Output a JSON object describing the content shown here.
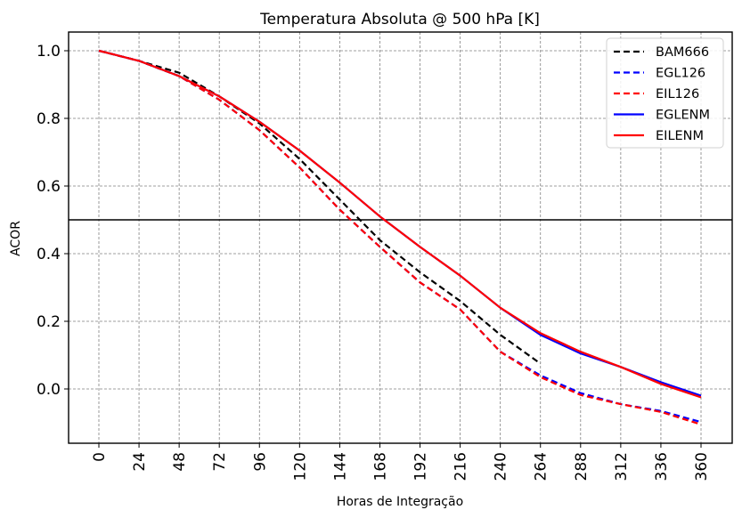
{
  "chart_data": {
    "type": "line",
    "title": "Temperatura Absoluta @ 500 hPa [K]",
    "xlabel": "Horas de Integração",
    "ylabel": "ACOR",
    "xlim": [
      -12,
      372
    ],
    "ylim": [
      -0.16,
      1.055
    ],
    "grid": true,
    "x_ticks": [
      0,
      24,
      48,
      72,
      96,
      120,
      144,
      168,
      192,
      216,
      240,
      264,
      288,
      312,
      336,
      360
    ],
    "x_tick_labels": [
      "0",
      "24",
      "48",
      "72",
      "96",
      "120",
      "144",
      "168",
      "192",
      "216",
      "240",
      "264",
      "288",
      "312",
      "336",
      "360"
    ],
    "y_ticks": [
      0.0,
      0.2,
      0.4,
      0.6,
      0.8,
      1.0
    ],
    "y_tick_labels": [
      "0.0",
      "0.2",
      "0.4",
      "0.6",
      "0.8",
      "1.0"
    ],
    "reference_line": {
      "y": 0.5,
      "color": "#000000"
    },
    "legend_position": "top-right",
    "series": [
      {
        "name": "BAM666",
        "color": "#000000",
        "style": "dashed",
        "x": [
          0,
          24,
          48,
          72,
          96,
          120,
          144,
          168,
          192,
          216,
          240,
          264
        ],
        "values": [
          1.0,
          0.97,
          0.935,
          0.865,
          0.785,
          0.68,
          0.56,
          0.44,
          0.345,
          0.26,
          0.16,
          0.075
        ]
      },
      {
        "name": "EGL126",
        "color": "#0000ff",
        "style": "dashed",
        "x": [
          0,
          24,
          48,
          72,
          96,
          120,
          144,
          168,
          192,
          216,
          240,
          264,
          288,
          312,
          336,
          360
        ],
        "values": [
          1.0,
          0.97,
          0.925,
          0.855,
          0.765,
          0.655,
          0.53,
          0.42,
          0.315,
          0.235,
          0.11,
          0.04,
          -0.012,
          -0.045,
          -0.065,
          -0.098
        ]
      },
      {
        "name": "EIL126",
        "color": "#ff0000",
        "style": "dashed",
        "x": [
          0,
          24,
          48,
          72,
          96,
          120,
          144,
          168,
          192,
          216,
          240,
          264,
          288,
          312,
          336,
          360
        ],
        "values": [
          1.0,
          0.97,
          0.925,
          0.855,
          0.765,
          0.655,
          0.53,
          0.42,
          0.315,
          0.235,
          0.11,
          0.035,
          -0.018,
          -0.045,
          -0.068,
          -0.105
        ]
      },
      {
        "name": "EGLENM",
        "color": "#0000ff",
        "style": "solid",
        "x": [
          0,
          24,
          48,
          72,
          96,
          120,
          144,
          168,
          192,
          216,
          240,
          264,
          288,
          312,
          336,
          360
        ],
        "values": [
          1.0,
          0.97,
          0.925,
          0.865,
          0.79,
          0.705,
          0.61,
          0.51,
          0.42,
          0.335,
          0.24,
          0.16,
          0.105,
          0.065,
          0.02,
          -0.02
        ]
      },
      {
        "name": "EILENM",
        "color": "#ff0000",
        "style": "solid",
        "x": [
          0,
          24,
          48,
          72,
          96,
          120,
          144,
          168,
          192,
          216,
          240,
          264,
          288,
          312,
          336,
          360
        ],
        "values": [
          1.0,
          0.97,
          0.925,
          0.865,
          0.79,
          0.705,
          0.61,
          0.51,
          0.42,
          0.335,
          0.24,
          0.165,
          0.11,
          0.065,
          0.015,
          -0.025
        ]
      }
    ]
  }
}
